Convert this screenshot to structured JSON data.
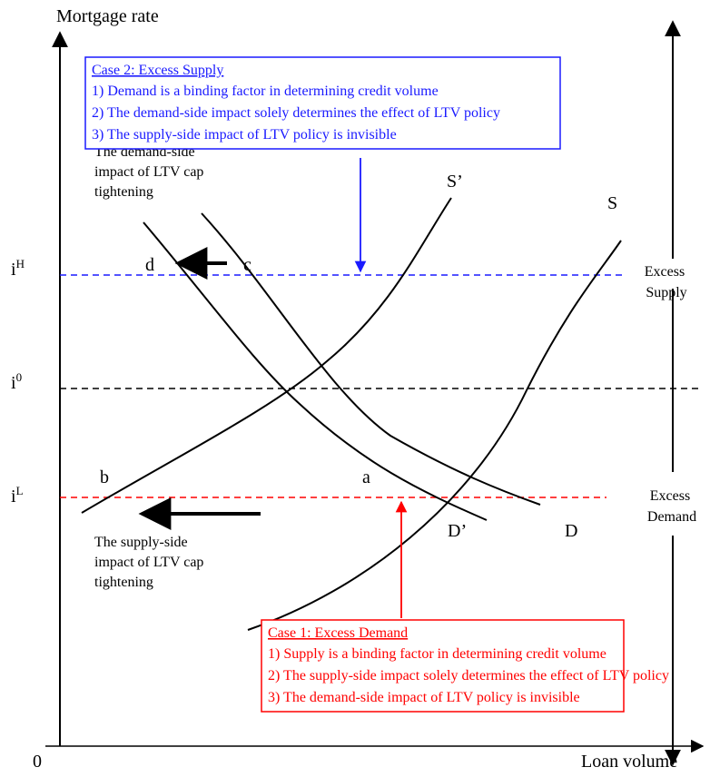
{
  "axes": {
    "y_label": "Mortgage rate",
    "x_label": "Loan volume",
    "origin_label": "0"
  },
  "rates": {
    "high": {
      "base": "i",
      "sup": "H"
    },
    "zero": {
      "base": "i",
      "sup": "0"
    },
    "low": {
      "base": "i",
      "sup": "L"
    }
  },
  "curves": {
    "S": "S",
    "S_prime": "S’",
    "D": "D",
    "D_prime": "D’"
  },
  "points": {
    "a": "a",
    "b": "b",
    "c": "c",
    "d": "d"
  },
  "impact_labels": {
    "demand": [
      "The demand-side",
      "impact of LTV cap",
      "tightening"
    ],
    "supply": [
      "The supply-side",
      "impact of LTV cap",
      "tightening"
    ]
  },
  "regions": {
    "excess_supply": [
      "Excess",
      "Supply"
    ],
    "excess_demand": [
      "Excess",
      "Demand"
    ]
  },
  "case2": {
    "title": "Case 2: Excess Supply",
    "lines": [
      "1) Demand is a binding factor in determining credit volume",
      "2) The demand-side impact solely determines the effect of LTV policy",
      "3) The supply-side impact of LTV policy is invisible"
    ]
  },
  "case1": {
    "title": "Case 1: Excess Demand",
    "lines": [
      "1) Supply is a binding factor in determining credit volume",
      "2) The supply-side impact solely determines the effect of LTV policy",
      "3) The demand-side impact of LTV policy is invisible"
    ]
  },
  "colors": {
    "ink": "#000000",
    "case2": "#1a1aff",
    "case1": "#ff0000"
  }
}
